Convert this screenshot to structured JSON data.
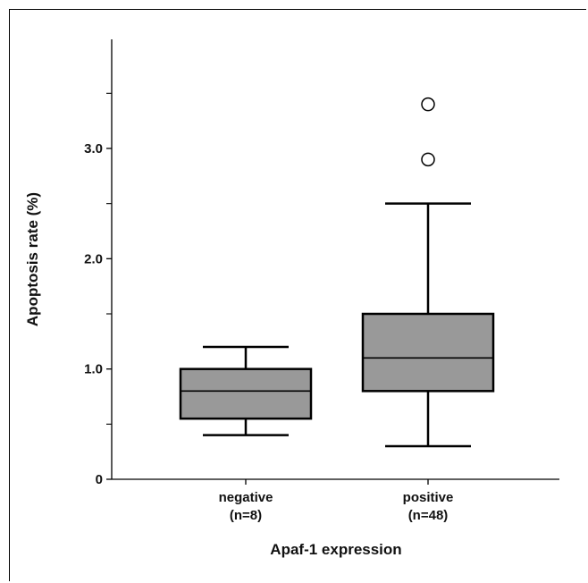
{
  "chart_data": {
    "type": "boxplot",
    "xlabel": "Apaf-1 expression",
    "ylabel": "Apoptosis rate (%)",
    "ylim": [
      0,
      4.0
    ],
    "yticks": [
      {
        "value": 0,
        "label": "0"
      },
      {
        "value": 1.0,
        "label": "1.0"
      },
      {
        "value": 2.0,
        "label": "2.0"
      },
      {
        "value": 3.0,
        "label": "3.0"
      }
    ],
    "minor_yticks": [
      0.5,
      1.5,
      2.5,
      3.5
    ],
    "categories": [
      {
        "name": "negative",
        "n_label": "(n=8)"
      },
      {
        "name": "positive",
        "n_label": "(n=48)"
      }
    ],
    "boxes": [
      {
        "category": "negative",
        "whisker_low": 0.4,
        "q1": 0.55,
        "median": 0.8,
        "q3": 1.0,
        "whisker_high": 1.2,
        "outliers": []
      },
      {
        "category": "positive",
        "whisker_low": 0.3,
        "q1": 0.8,
        "median": 1.1,
        "q3": 1.5,
        "whisker_high": 2.5,
        "outliers": [
          2.9,
          3.4
        ]
      }
    ],
    "colors": {
      "box_fill": "#999999",
      "stroke": "#000000"
    }
  }
}
